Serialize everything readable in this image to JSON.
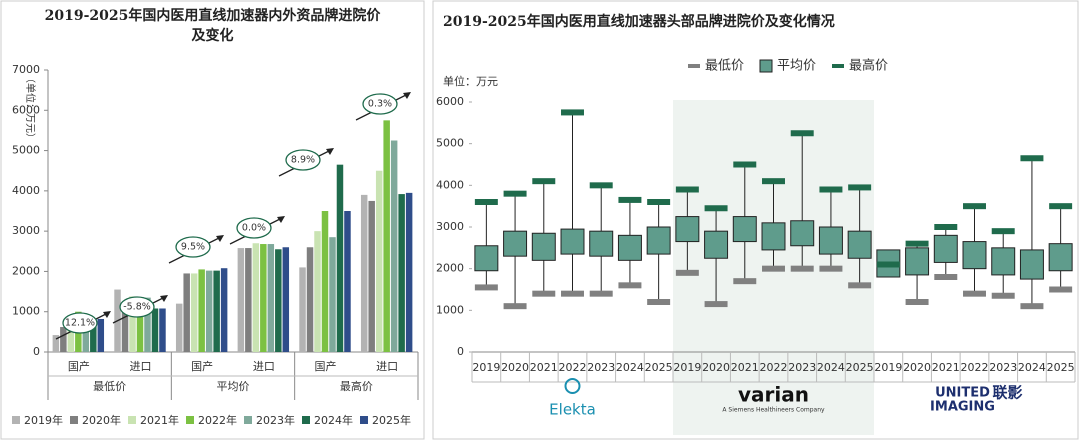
{
  "chart_data": [
    {
      "type": "bar",
      "title": "2019-2025年国内医用直线加速器内外资品牌进院价及变化",
      "y_label": "（单位：万元）",
      "groups": [
        "最低价",
        "平均价",
        "最高价"
      ],
      "categories": [
        "国产",
        "进口",
        "国产",
        "进口",
        "国产",
        "进口"
      ],
      "ylim": [
        0,
        7000
      ],
      "yticks": [
        0,
        1000,
        2000,
        3000,
        4000,
        5000,
        6000,
        7000
      ],
      "annotations": [
        "12.1%",
        "-5.8%",
        "9.5%",
        "0.0%",
        "8.9%",
        "0.3%"
      ],
      "series": [
        {
          "name": "2019年",
          "color": "#b3b3b3",
          "values": [
            420,
            1550,
            1200,
            2580,
            2100,
            3900
          ]
        },
        {
          "name": "2020年",
          "color": "#7f7f7f",
          "values": [
            620,
            1100,
            1950,
            2580,
            2600,
            3750
          ]
        },
        {
          "name": "2021年",
          "color": "#c9e3b2",
          "values": [
            820,
            1380,
            1950,
            2700,
            3000,
            4500
          ]
        },
        {
          "name": "2022年",
          "color": "#7cc142",
          "values": [
            1000,
            1000,
            2050,
            2680,
            3500,
            5750
          ]
        },
        {
          "name": "2023年",
          "color": "#7fa99b",
          "values": [
            820,
            1350,
            2020,
            2680,
            2850,
            5250
          ]
        },
        {
          "name": "2024年",
          "color": "#1f6b4c",
          "values": [
            780,
            1080,
            2020,
            2550,
            4650,
            3920
          ]
        },
        {
          "name": "2025年",
          "color": "#2f4d8a",
          "values": [
            820,
            1080,
            2080,
            2600,
            3500,
            3950
          ]
        }
      ]
    },
    {
      "type": "box",
      "title": "2019-2025年国内医用直线加速器头部品牌进院价及变化情况",
      "y_label": "单位：万元",
      "ylim": [
        0,
        6000
      ],
      "yticks": [
        0,
        1000,
        2000,
        3000,
        4000,
        5000,
        6000
      ],
      "shaded_group": 1,
      "brands": [
        {
          "lines": [
            "Elekta"
          ]
        },
        {
          "lines": [
            "varian",
            "A Siemens Healthineers Company"
          ]
        },
        {
          "lines": [
            "UNITED",
            "IMAGING",
            "联影"
          ]
        }
      ],
      "categories": [
        "2019",
        "2020",
        "2021",
        "2022",
        "2023",
        "2024",
        "2025",
        "2019",
        "2020",
        "2021",
        "2022",
        "2023",
        "2024",
        "2025",
        "2019",
        "2020",
        "2021",
        "2022",
        "2023",
        "2024",
        "2025"
      ],
      "series": [
        {
          "name": "最低价",
          "color": "#808080",
          "values": [
            1550,
            1100,
            1400,
            1400,
            1400,
            1600,
            1200,
            1900,
            1150,
            1700,
            2000,
            2000,
            2000,
            1600,
            2100,
            1200,
            1800,
            1400,
            1350,
            1100,
            1500
          ]
        },
        {
          "name": "平均价",
          "color": "#5f9c8c",
          "low": [
            1950,
            2300,
            2200,
            2350,
            2300,
            2200,
            2350,
            2650,
            2250,
            2650,
            2450,
            2550,
            2350,
            2250,
            1800,
            1850,
            2150,
            2000,
            1850,
            1750,
            1950
          ],
          "high": [
            2550,
            2900,
            2850,
            2950,
            2900,
            2800,
            3000,
            3250,
            2900,
            3250,
            3100,
            3150,
            3000,
            2900,
            2450,
            2500,
            2800,
            2650,
            2500,
            2450,
            2600
          ]
        },
        {
          "name": "最高价",
          "color": "#1f6b4c",
          "values": [
            3600,
            3800,
            4100,
            5750,
            4000,
            3650,
            3600,
            3900,
            3450,
            4500,
            4100,
            5250,
            3900,
            3950,
            2100,
            2600,
            3000,
            3500,
            2900,
            4650,
            3500
          ]
        }
      ]
    }
  ]
}
